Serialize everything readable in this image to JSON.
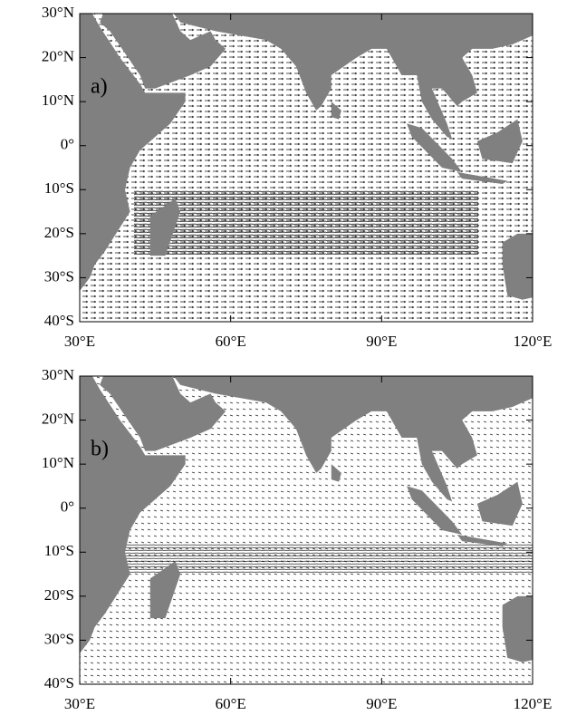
{
  "panels": [
    {
      "label": "a)",
      "xlim": [
        30,
        120
      ],
      "ylim": [
        -40,
        30
      ],
      "xticks": [
        {
          "value": 30,
          "label": "30°E"
        },
        {
          "value": 60,
          "label": "60°E"
        },
        {
          "value": 90,
          "label": "90°E"
        },
        {
          "value": 120,
          "label": "120°E"
        }
      ],
      "yticks": [
        {
          "value": 30,
          "label": "30°N"
        },
        {
          "value": 20,
          "label": "20°N"
        },
        {
          "value": 10,
          "label": "10°N"
        },
        {
          "value": 0,
          "label": "0°"
        },
        {
          "value": -10,
          "label": "10°S"
        },
        {
          "value": -20,
          "label": "20°S"
        },
        {
          "value": -30,
          "label": "30°S"
        },
        {
          "value": -40,
          "label": "40°S"
        }
      ]
    },
    {
      "label": "b)",
      "xlim": [
        30,
        120
      ],
      "ylim": [
        -40,
        30
      ],
      "xticks": [
        {
          "value": 30,
          "label": "30°E"
        },
        {
          "value": 60,
          "label": "60°E"
        },
        {
          "value": 90,
          "label": "90°E"
        },
        {
          "value": 120,
          "label": "120°E"
        }
      ],
      "yticks": [
        {
          "value": 30,
          "label": "30°N"
        },
        {
          "value": 20,
          "label": "20°N"
        },
        {
          "value": 10,
          "label": "10°N"
        },
        {
          "value": 0,
          "label": "0°"
        },
        {
          "value": -10,
          "label": "10°S"
        },
        {
          "value": -20,
          "label": "20°S"
        },
        {
          "value": -30,
          "label": "30°S"
        },
        {
          "value": -40,
          "label": "40°S"
        }
      ]
    }
  ]
}
